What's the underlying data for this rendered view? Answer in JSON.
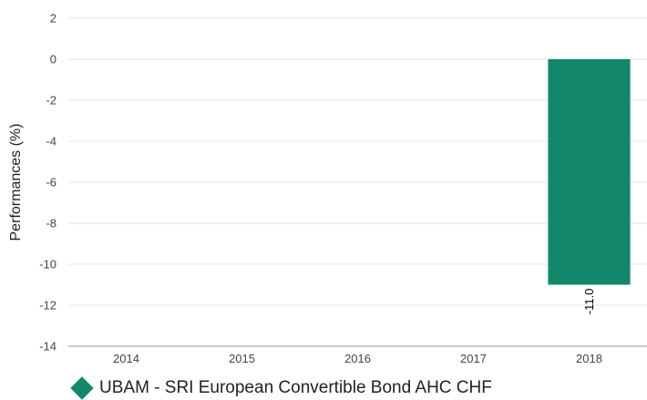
{
  "chart_data": {
    "type": "bar",
    "categories": [
      "2014",
      "2015",
      "2016",
      "2017",
      "2018"
    ],
    "series": [
      {
        "name": "UBAM - SRI European Convertible Bond AHC CHF",
        "values": [
          null,
          null,
          null,
          null,
          -11.0
        ],
        "labels": [
          "",
          "",
          "",
          "",
          "-11.0"
        ],
        "color": "#13876a"
      }
    ],
    "ylabel": "Performances (%)",
    "ylim": [
      -14,
      2
    ],
    "yticks": [
      "2",
      "0",
      "-2",
      "-4",
      "-6",
      "-8",
      "-10",
      "-12",
      "-14"
    ],
    "grid": true,
    "legend_position": "bottom-left"
  }
}
